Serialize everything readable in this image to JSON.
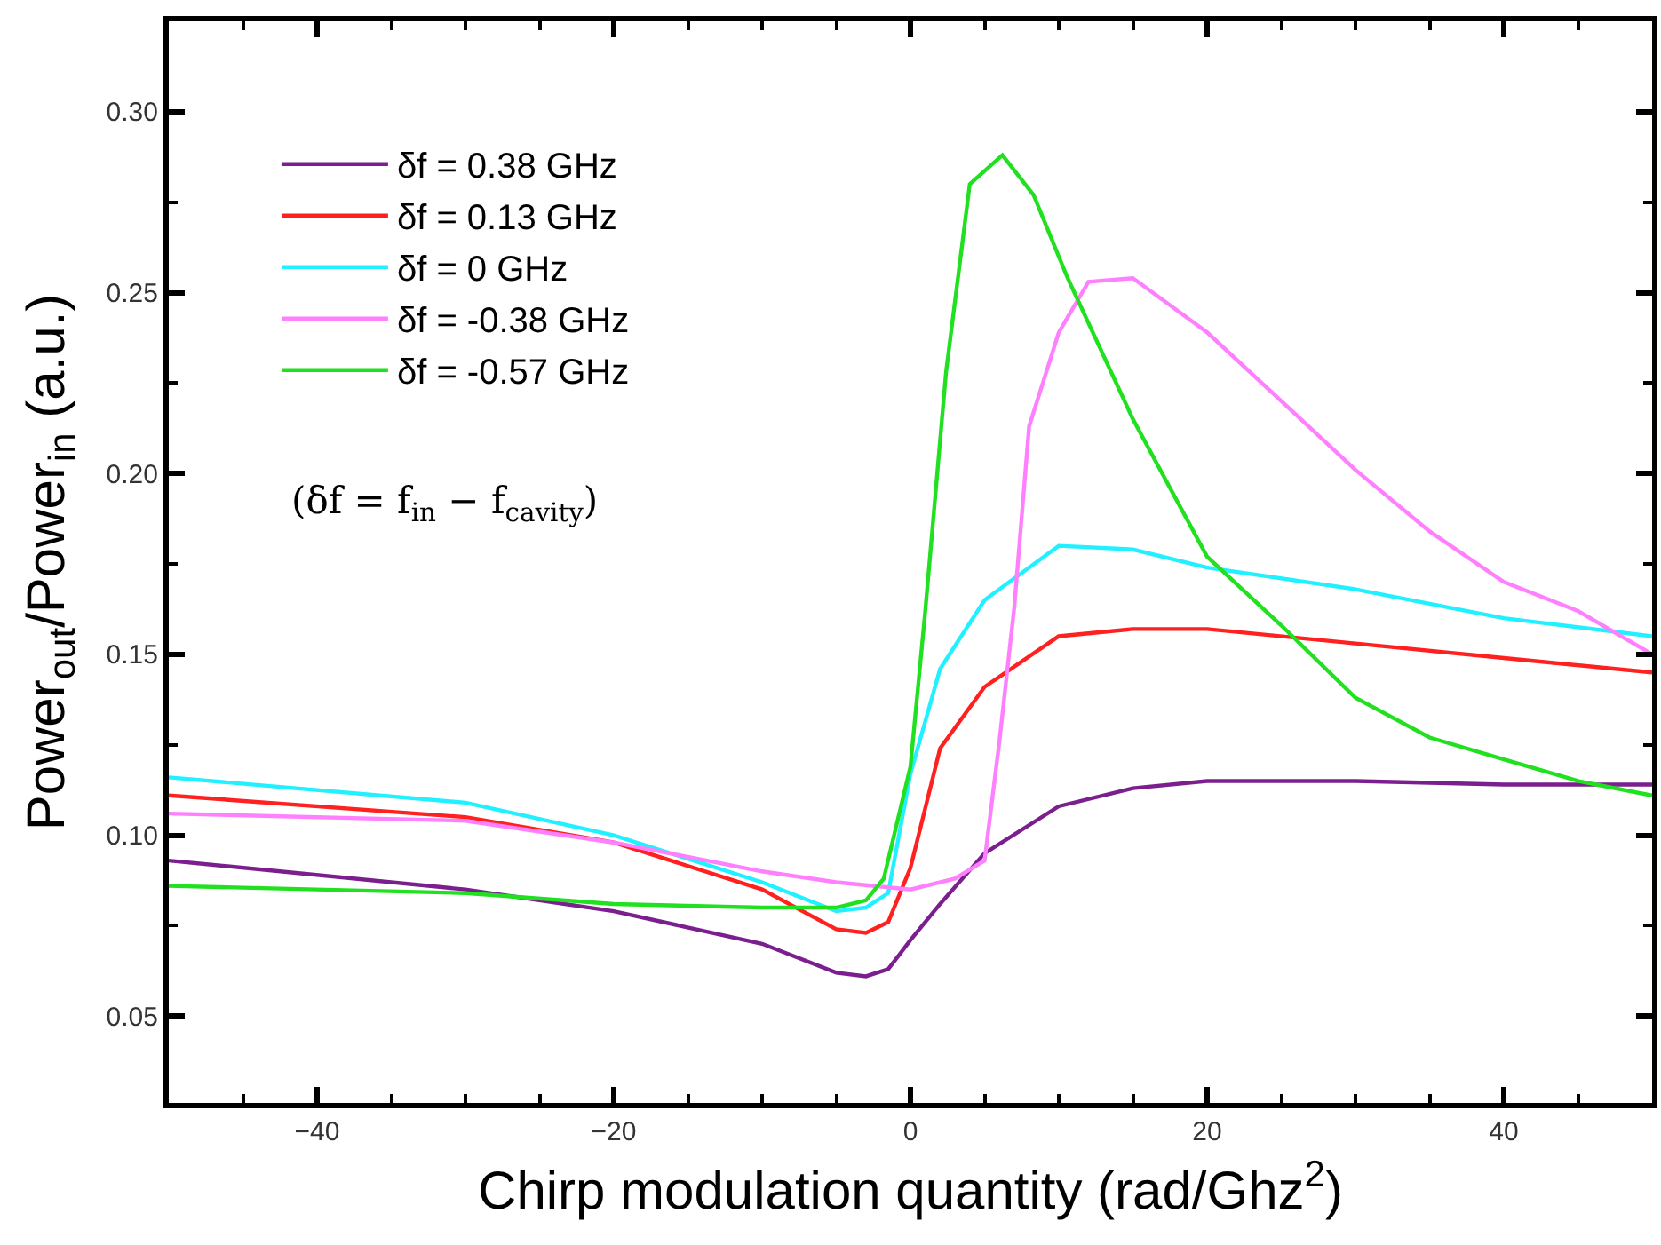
{
  "chart_data": {
    "type": "line",
    "xlabel": "Chirp modulation quantity (rad/Ghz$^{2}$)",
    "ylabel": "Power$_{out}$/Power$_{in}$ (a.u.)",
    "xlim": [
      -50,
      50
    ],
    "ylim": [
      0.026,
      0.325
    ],
    "xticks": [
      -40,
      -20,
      0,
      20,
      40
    ],
    "yticks": [
      0.05,
      {
        "value": 0.1,
        "label": "0.10"
      },
      0.15,
      {
        "value": 0.2,
        "label": "0.20"
      },
      0.25,
      {
        "value": 0.3,
        "label": "0.30"
      }
    ],
    "legend": "top left",
    "marker": "none",
    "line_style": "solid",
    "annotations": [
      "(δf = f$_{in}$ − f$_{cavity}$)"
    ],
    "series": [
      {
        "name": "δf = 0.38 GHz",
        "color": "#7b1f8f",
        "x": [
          -50,
          -30,
          -20,
          -10,
          -5,
          -3,
          -1.5,
          0,
          2,
          5,
          10,
          15,
          20,
          30,
          40,
          50
        ],
        "values": [
          0.093,
          0.085,
          0.079,
          0.07,
          0.062,
          0.061,
          0.063,
          0.071,
          0.081,
          0.095,
          0.108,
          0.113,
          0.115,
          0.115,
          0.114,
          0.114
        ]
      },
      {
        "name": "δf = 0.13 GHz",
        "color": "#ff2020",
        "x": [
          -50,
          -30,
          -20,
          -10,
          -5,
          -3,
          -1.5,
          0,
          2,
          5,
          10,
          15,
          20,
          30,
          40,
          50
        ],
        "values": [
          0.111,
          0.105,
          0.098,
          0.085,
          0.074,
          0.073,
          0.076,
          0.091,
          0.124,
          0.141,
          0.155,
          0.157,
          0.157,
          0.153,
          0.149,
          0.145
        ]
      },
      {
        "name": "δf = 0 GHz",
        "color": "#20f0ff",
        "x": [
          -50,
          -30,
          -20,
          -10,
          -5,
          -3,
          -1.5,
          0,
          2,
          5,
          10,
          15,
          20,
          30,
          40,
          50
        ],
        "values": [
          0.116,
          0.109,
          0.1,
          0.087,
          0.079,
          0.08,
          0.084,
          0.117,
          0.146,
          0.165,
          0.18,
          0.179,
          0.174,
          0.168,
          0.16,
          0.155
        ]
      },
      {
        "name": "δf = -0.38 GHz",
        "color": "#ff80ff",
        "x": [
          -50,
          -30,
          -20,
          -10,
          -5,
          0,
          3,
          5,
          6,
          7,
          8,
          10,
          12,
          15,
          20,
          25,
          30,
          35,
          40,
          45,
          50
        ],
        "values": [
          0.106,
          0.104,
          0.098,
          0.09,
          0.087,
          0.085,
          0.088,
          0.093,
          0.126,
          0.163,
          0.213,
          0.239,
          0.253,
          0.254,
          0.239,
          0.22,
          0.201,
          0.184,
          0.17,
          0.162,
          0.15
        ]
      },
      {
        "name": "δf = -0.57 GHz",
        "color": "#20e020",
        "x": [
          -50,
          -30,
          -20,
          -10,
          -5,
          -3,
          -1.8,
          0,
          1,
          2.4,
          4,
          6.2,
          8.3,
          10.6,
          15,
          20,
          25,
          30,
          35,
          40,
          45,
          50
        ],
        "values": [
          0.086,
          0.084,
          0.081,
          0.08,
          0.08,
          0.082,
          0.088,
          0.119,
          0.162,
          0.228,
          0.28,
          0.288,
          0.277,
          0.254,
          0.215,
          0.177,
          0.158,
          0.138,
          0.127,
          0.121,
          0.115,
          0.111
        ]
      }
    ]
  }
}
